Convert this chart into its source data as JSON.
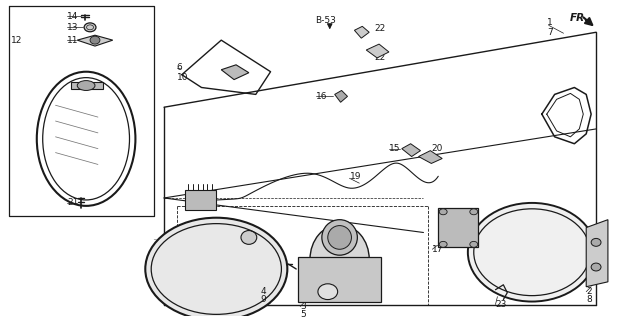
{
  "bg": "#ffffff",
  "lc": "#1a1a1a",
  "fw": 6.23,
  "fh": 3.2,
  "dpi": 100
}
